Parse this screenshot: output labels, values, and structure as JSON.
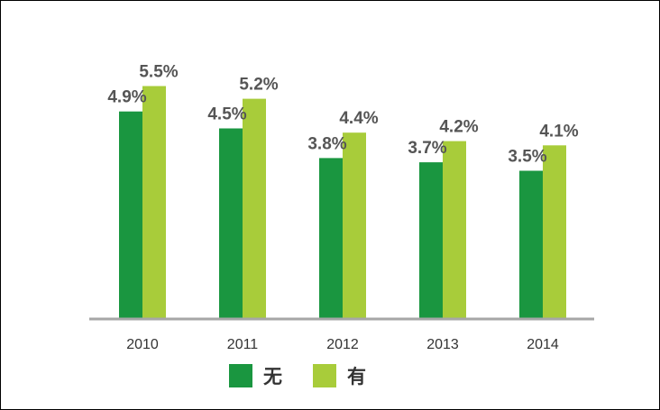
{
  "chart_data": {
    "type": "bar",
    "categories": [
      "2010",
      "2011",
      "2012",
      "2013",
      "2014"
    ],
    "series": [
      {
        "name": "无",
        "color": "#1a9640",
        "values": [
          4.9,
          4.5,
          3.8,
          3.7,
          3.5
        ],
        "labels": [
          "4.9%",
          "4.5%",
          "3.8%",
          "3.7%",
          "3.5%"
        ]
      },
      {
        "name": "有",
        "color": "#a8cc3a",
        "values": [
          5.5,
          5.2,
          4.4,
          4.2,
          4.1
        ],
        "labels": [
          "5.5%",
          "5.2%",
          "4.4%",
          "4.2%",
          "4.1%"
        ]
      }
    ],
    "ylim": [
      0,
      6.5
    ],
    "grid": false,
    "legend_position": "bottom",
    "axis_color": "#a6a6a6"
  }
}
